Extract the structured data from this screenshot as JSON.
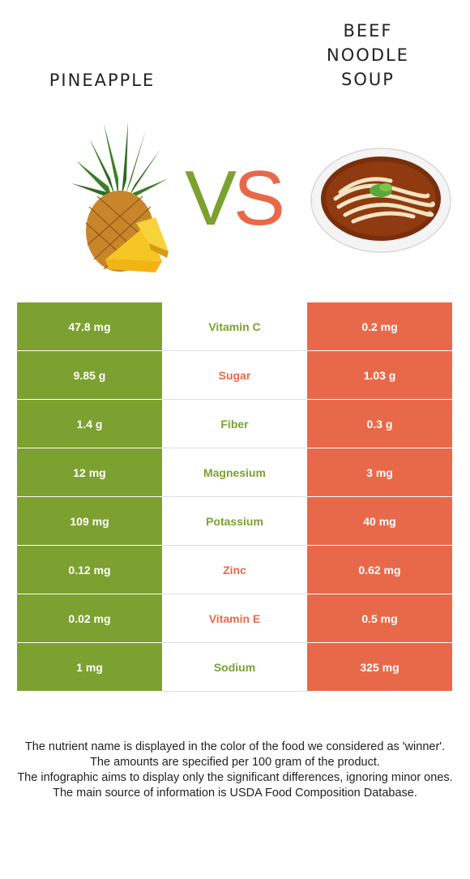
{
  "left_food": {
    "name": "PINEAPPLE",
    "image_icon": "pineapple-image"
  },
  "right_food": {
    "name_lines": [
      "BEEF",
      "NOODLE",
      "SOUP"
    ],
    "image_icon": "beef-noodle-soup-image"
  },
  "vs": {
    "v": "V",
    "s": "S"
  },
  "colors": {
    "left": "#7ca130",
    "right": "#e8694a"
  },
  "rows": [
    {
      "left": "47.8 mg",
      "name": "Vitamin C",
      "right": "0.2 mg",
      "winner": "left"
    },
    {
      "left": "9.85 g",
      "name": "Sugar",
      "right": "1.03 g",
      "winner": "right"
    },
    {
      "left": "1.4 g",
      "name": "Fiber",
      "right": "0.3 g",
      "winner": "left"
    },
    {
      "left": "12 mg",
      "name": "Magnesium",
      "right": "3 mg",
      "winner": "left"
    },
    {
      "left": "109 mg",
      "name": "Potassium",
      "right": "40 mg",
      "winner": "left"
    },
    {
      "left": "0.12 mg",
      "name": "Zinc",
      "right": "0.62 mg",
      "winner": "right"
    },
    {
      "left": "0.02 mg",
      "name": "Vitamin E",
      "right": "0.5 mg",
      "winner": "right"
    },
    {
      "left": "1 mg",
      "name": "Sodium",
      "right": "325 mg",
      "winner": "left"
    }
  ],
  "notes": [
    "The nutrient name is displayed in the color of the food we considered as 'winner'.",
    "The amounts are specified per 100 gram of the product.",
    "The infographic aims to display only the significant differences, ignoring minor ones.",
    "The main source of information is USDA Food Composition Database."
  ]
}
